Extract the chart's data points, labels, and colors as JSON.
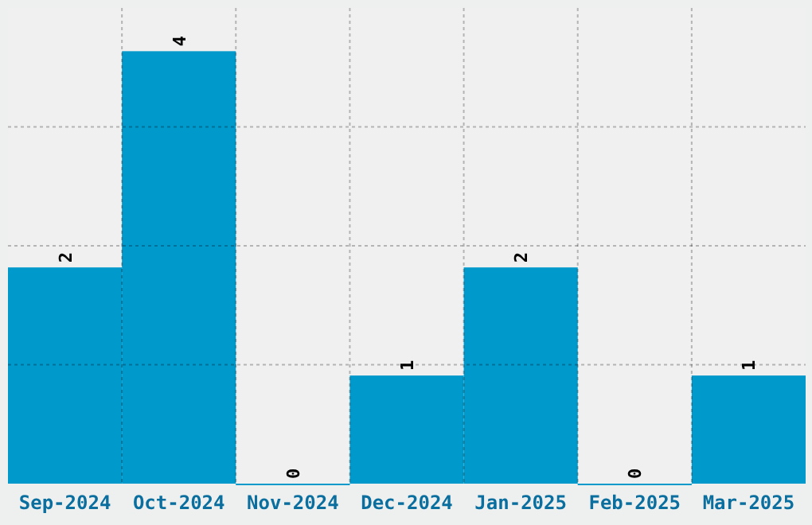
{
  "chart_data": {
    "type": "bar",
    "categories": [
      "Sep-2024",
      "Oct-2024",
      "Nov-2024",
      "Dec-2024",
      "Jan-2025",
      "Feb-2025",
      "Mar-2025"
    ],
    "values": [
      2,
      4,
      0,
      1,
      2,
      0,
      1
    ],
    "color": "#0099cc",
    "ylim": [
      0,
      4.4
    ],
    "yticks": [
      {
        "value": 1.1,
        "label": null
      },
      {
        "value": 2.2,
        "label": null
      },
      {
        "value": 3.3,
        "label": null
      }
    ],
    "tick_labels": "x",
    "grid": true,
    "data_labels": true
  }
}
